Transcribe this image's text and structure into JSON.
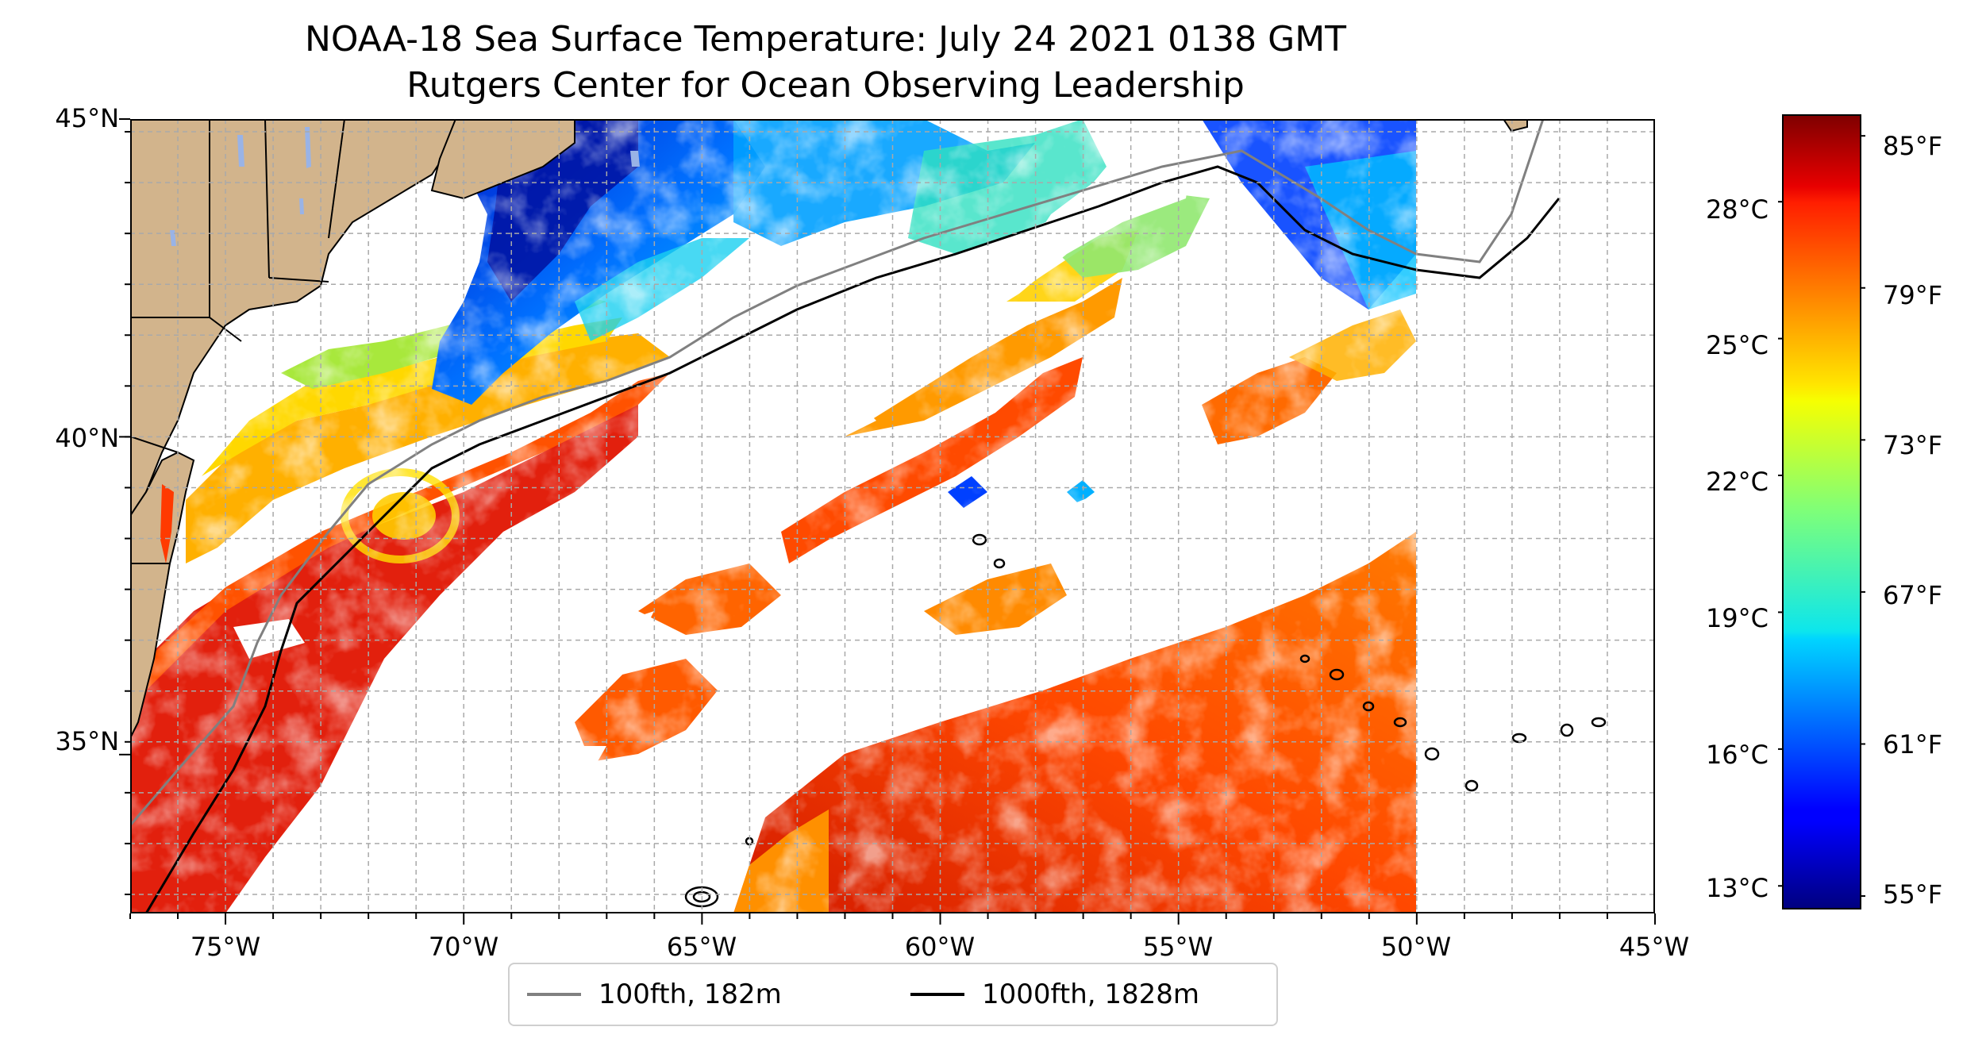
{
  "title": {
    "line1": "NOAA-18 Sea Surface Temperature: July 24 2021 0138 GMT",
    "line2": "Rutgers Center for Ocean Observing Leadership"
  },
  "map": {
    "lat_range": [
      32.5,
      45
    ],
    "lon_range": [
      -77,
      -45
    ],
    "lat_ticks": [
      "45°N",
      "40°N",
      "35°N"
    ],
    "lon_ticks": [
      "75°W",
      "70°W",
      "65°W",
      "60°W",
      "55°W",
      "50°W",
      "45°W"
    ],
    "land_color": "#D2B48C",
    "lake_color": "#99B3E6",
    "data_east_limit_lon": -50,
    "gridlines": "dashed",
    "features": [
      "ssT-warm-gulf-stream",
      "cool-gulf-of-maine",
      "clouds-white-gaps",
      "seamount-contours"
    ]
  },
  "colorbar": {
    "colormap": "jet",
    "celsius_labels": [
      "28°C",
      "25°C",
      "22°C",
      "19°C",
      "16°C",
      "13°C"
    ],
    "fahrenheit_labels": [
      "85°F",
      "79°F",
      "73°F",
      "67°F",
      "61°F",
      "55°F"
    ],
    "celsius_range": [
      12.5,
      29.9
    ]
  },
  "legend": {
    "entries": [
      {
        "label": "100fth, 182m",
        "color": "#808080"
      },
      {
        "label": "1000fth, 1828m",
        "color": "#000000"
      }
    ]
  }
}
